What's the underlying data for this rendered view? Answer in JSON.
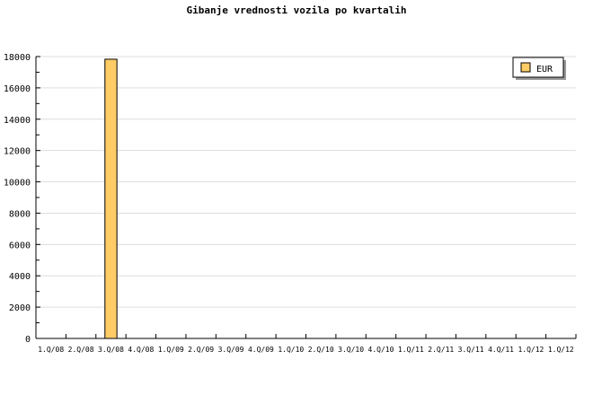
{
  "chart_data": {
    "type": "bar",
    "title": "Gibanje vrednosti vozila po kvartalih",
    "categories": [
      "1.Q/08",
      "2.Q/08",
      "3.Q/08",
      "4.Q/08",
      "1.Q/09",
      "2.Q/09",
      "3.Q/09",
      "4.Q/09",
      "1.Q/10",
      "2.Q/10",
      "3.Q/10",
      "4.Q/10",
      "1.Q/11",
      "2.Q/11",
      "3.Q/11",
      "4.Q/11",
      "1.Q/12",
      "1.Q/12"
    ],
    "series": [
      {
        "name": "EUR",
        "values": [
          0,
          0,
          17830,
          0,
          0,
          0,
          0,
          0,
          0,
          0,
          0,
          0,
          0,
          0,
          0,
          0,
          0,
          0
        ]
      }
    ],
    "ylim": [
      0,
      18000
    ],
    "yticks": [
      0,
      2000,
      4000,
      6000,
      8000,
      10000,
      12000,
      14000,
      16000,
      18000
    ],
    "grid": true,
    "legend": "top-right",
    "colors": {
      "bar": "#ffcc66",
      "grid": "#dddddd"
    }
  }
}
